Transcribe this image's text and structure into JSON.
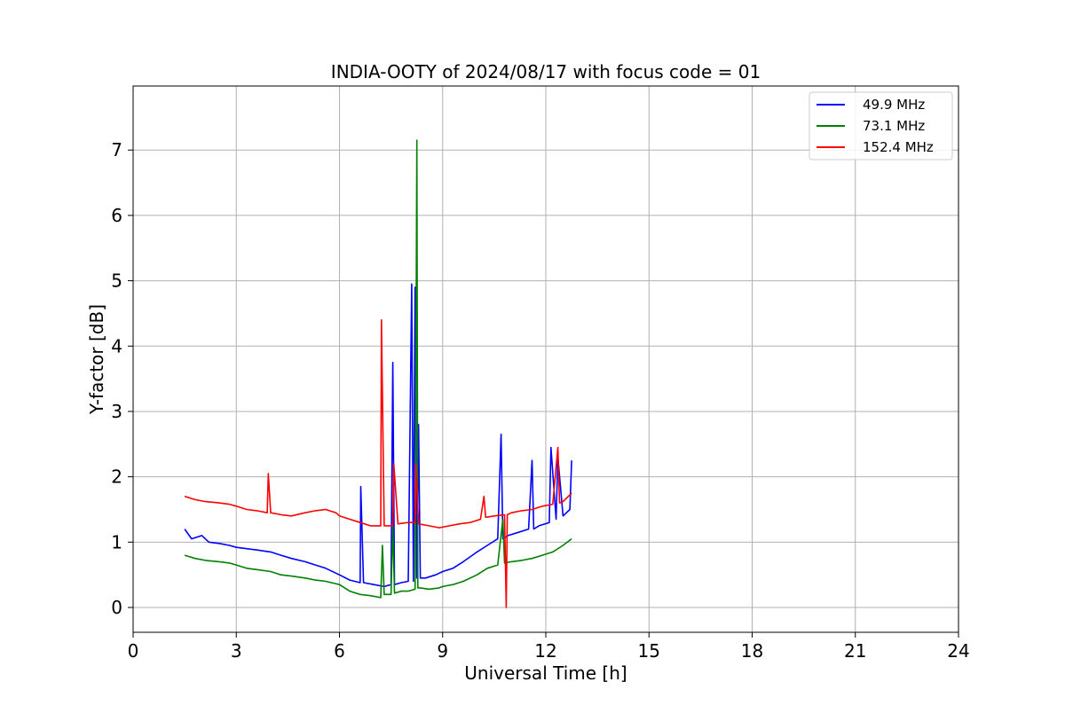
{
  "chart_data": {
    "type": "line",
    "title": "INDIA-OOTY of 2024/08/17 with focus code = 01",
    "xlabel": "Universal Time [h]",
    "ylabel": "Y-factor [dB]",
    "xlim": [
      0,
      24
    ],
    "ylim": [
      -0.38,
      7.98
    ],
    "xticks": [
      0,
      3,
      6,
      9,
      12,
      15,
      18,
      21,
      24
    ],
    "yticks": [
      0,
      1,
      2,
      3,
      4,
      5,
      6,
      7
    ],
    "grid": true,
    "legend_position": "top-right",
    "series": [
      {
        "name": "49.9 MHz",
        "color": "#0000ff",
        "x": [
          1.5,
          1.7,
          2.0,
          2.2,
          2.5,
          2.8,
          3.0,
          3.3,
          3.6,
          4.0,
          4.3,
          4.6,
          5.0,
          5.3,
          5.6,
          6.0,
          6.3,
          6.6,
          6.62,
          6.7,
          7.0,
          7.3,
          7.5,
          7.55,
          7.6,
          7.8,
          8.0,
          8.1,
          8.15,
          8.2,
          8.25,
          8.3,
          8.35,
          8.5,
          8.8,
          9.0,
          9.3,
          9.6,
          10.0,
          10.3,
          10.6,
          10.7,
          10.75,
          10.9,
          11.2,
          11.5,
          11.6,
          11.65,
          11.8,
          12.1,
          12.15,
          12.3,
          12.35,
          12.5,
          12.7,
          12.75
        ],
        "y": [
          1.2,
          1.05,
          1.1,
          1.0,
          0.98,
          0.95,
          0.92,
          0.9,
          0.88,
          0.85,
          0.8,
          0.75,
          0.7,
          0.65,
          0.6,
          0.5,
          0.42,
          0.38,
          1.85,
          0.38,
          0.35,
          0.32,
          0.35,
          3.75,
          0.35,
          0.38,
          0.4,
          4.95,
          0.4,
          4.9,
          0.45,
          2.8,
          0.45,
          0.45,
          0.5,
          0.55,
          0.6,
          0.7,
          0.85,
          0.95,
          1.05,
          2.65,
          1.05,
          1.1,
          1.15,
          1.2,
          2.25,
          1.2,
          1.25,
          1.3,
          2.45,
          1.35,
          2.3,
          1.4,
          1.5,
          2.25
        ]
      },
      {
        "name": "73.1 MHz",
        "color": "#008000",
        "x": [
          1.5,
          1.8,
          2.1,
          2.5,
          2.8,
          3.0,
          3.3,
          3.6,
          4.0,
          4.3,
          4.6,
          5.0,
          5.3,
          5.6,
          6.0,
          6.3,
          6.6,
          6.9,
          7.2,
          7.25,
          7.3,
          7.5,
          7.55,
          7.6,
          7.8,
          8.0,
          8.2,
          8.25,
          8.28,
          8.35,
          8.6,
          8.9,
          9.0,
          9.3,
          9.6,
          10.0,
          10.3,
          10.6,
          10.75,
          10.8,
          11.0,
          11.3,
          11.6,
          11.9,
          12.2,
          12.5,
          12.75
        ],
        "y": [
          0.8,
          0.75,
          0.72,
          0.7,
          0.68,
          0.65,
          0.6,
          0.58,
          0.55,
          0.5,
          0.48,
          0.45,
          0.42,
          0.4,
          0.35,
          0.25,
          0.2,
          0.18,
          0.15,
          0.95,
          0.2,
          0.2,
          1.25,
          0.22,
          0.25,
          0.25,
          0.28,
          7.15,
          0.3,
          0.3,
          0.28,
          0.3,
          0.32,
          0.35,
          0.4,
          0.5,
          0.6,
          0.65,
          1.35,
          0.68,
          0.7,
          0.72,
          0.75,
          0.8,
          0.85,
          0.95,
          1.05
        ]
      },
      {
        "name": "152.4 MHz",
        "color": "#ff0000",
        "x": [
          1.5,
          1.8,
          2.1,
          2.5,
          2.8,
          3.0,
          3.3,
          3.6,
          3.9,
          3.93,
          4.0,
          4.3,
          4.6,
          5.0,
          5.3,
          5.6,
          5.9,
          6.0,
          6.3,
          6.6,
          6.9,
          7.2,
          7.22,
          7.3,
          7.55,
          7.58,
          7.7,
          8.0,
          8.2,
          8.22,
          8.3,
          8.6,
          8.9,
          9.2,
          9.5,
          9.8,
          10.1,
          10.2,
          10.25,
          10.5,
          10.8,
          10.85,
          10.88,
          11.0,
          11.3,
          11.6,
          11.9,
          12.2,
          12.35,
          12.4,
          12.5,
          12.75
        ],
        "y": [
          1.7,
          1.65,
          1.62,
          1.6,
          1.58,
          1.55,
          1.5,
          1.48,
          1.45,
          2.05,
          1.45,
          1.42,
          1.4,
          1.45,
          1.48,
          1.5,
          1.45,
          1.4,
          1.35,
          1.3,
          1.25,
          1.25,
          4.4,
          1.25,
          1.25,
          2.2,
          1.28,
          1.3,
          1.3,
          2.2,
          1.28,
          1.25,
          1.22,
          1.25,
          1.28,
          1.3,
          1.35,
          1.7,
          1.38,
          1.4,
          1.42,
          0.0,
          1.42,
          1.45,
          1.48,
          1.5,
          1.55,
          1.58,
          2.45,
          1.6,
          1.62,
          1.75
        ]
      }
    ]
  }
}
